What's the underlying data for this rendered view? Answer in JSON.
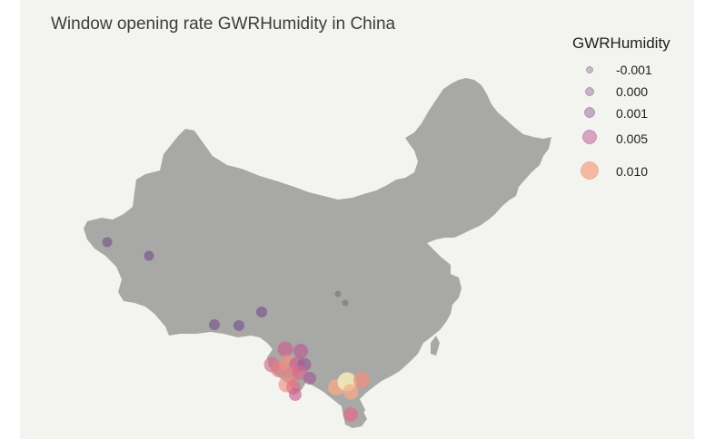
{
  "title": "Window opening rate GWRHumidity in China",
  "legend": {
    "title": "GWRHumidity",
    "items": [
      {
        "label": "-0.001",
        "value": -0.001,
        "color": "#a894ac"
      },
      {
        "label": "0.000",
        "value": 0.0,
        "color": "#a58ab0"
      },
      {
        "label": "0.001",
        "value": 0.001,
        "color": "#a679a8"
      },
      {
        "label": "0.005",
        "value": 0.005,
        "color": "#c870a0"
      },
      {
        "label": "0.010",
        "value": 0.01,
        "color": "#f8a487"
      }
    ]
  },
  "colors": {
    "background": "#f3f3ef",
    "land": "#a8a8a6",
    "low": "#7a5a8a",
    "mid": "#c8608f",
    "high": "#f7a98a",
    "highest": "#f2edb8"
  },
  "chart_data": {
    "type": "scatter",
    "variable": "GWRHumidity",
    "points": [
      {
        "lon": 75.5,
        "lat": 37.8,
        "value": 0.0003
      },
      {
        "lon": 80.0,
        "lat": 36.6,
        "value": 0.0004
      },
      {
        "lon": 87.3,
        "lat": 31.3,
        "value": 0.0006
      },
      {
        "lon": 89.9,
        "lat": 31.2,
        "value": 0.0006
      },
      {
        "lon": 92.6,
        "lat": 32.5,
        "value": 0.0007
      },
      {
        "lon": 101.0,
        "lat": 33.8,
        "value": -0.0008
      },
      {
        "lon": 101.8,
        "lat": 33.0,
        "value": -0.0008
      },
      {
        "lon": 95.8,
        "lat": 28.4,
        "value": 0.006
      },
      {
        "lon": 97.5,
        "lat": 28.4,
        "value": 0.005
      },
      {
        "lon": 94.2,
        "lat": 26.9,
        "value": 0.007
      },
      {
        "lon": 95.0,
        "lat": 26.3,
        "value": 0.008
      },
      {
        "lon": 95.8,
        "lat": 27.3,
        "value": 0.009
      },
      {
        "lon": 96.9,
        "lat": 27.2,
        "value": 0.007
      },
      {
        "lon": 97.6,
        "lat": 27.1,
        "value": 0.004
      },
      {
        "lon": 96.4,
        "lat": 26.3,
        "value": 0.008
      },
      {
        "lon": 97.3,
        "lat": 26.5,
        "value": 0.006
      },
      {
        "lon": 98.3,
        "lat": 26.0,
        "value": 0.004
      },
      {
        "lon": 95.4,
        "lat": 25.6,
        "value": 0.009
      },
      {
        "lon": 96.1,
        "lat": 25.0,
        "value": 0.007
      },
      {
        "lon": 96.8,
        "lat": 24.6,
        "value": 0.005
      },
      {
        "lon": 104.0,
        "lat": 25.4,
        "value": 0.009
      },
      {
        "lon": 105.1,
        "lat": 25.8,
        "value": 0.012
      },
      {
        "lon": 105.7,
        "lat": 25.0,
        "value": 0.01
      },
      {
        "lon": 106.7,
        "lat": 25.7,
        "value": 0.008
      },
      {
        "lon": 104.5,
        "lat": 22.0,
        "value": 0.004
      }
    ]
  }
}
